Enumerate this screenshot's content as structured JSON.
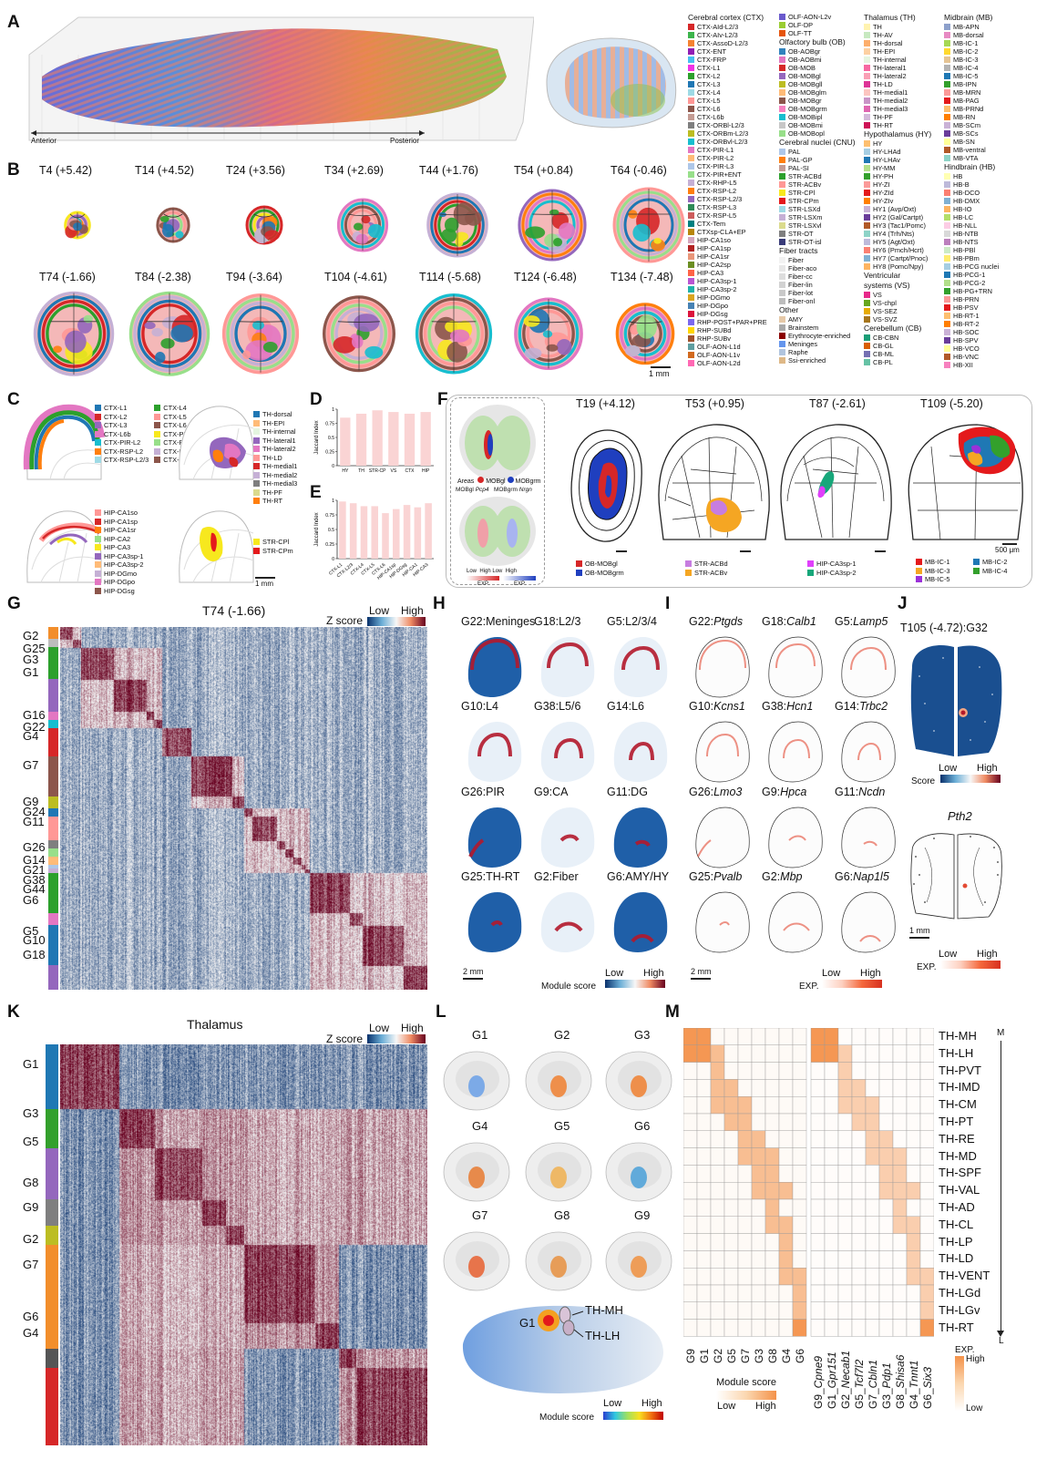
{
  "panels": {
    "a": "A",
    "b": "B",
    "c": "C",
    "d": "D",
    "e": "E",
    "f": "F",
    "g": "G",
    "h": "H",
    "i": "I",
    "j": "J",
    "k": "K",
    "l": "L",
    "m": "M"
  },
  "a": {
    "anterior": "Anterior",
    "posterior": "Posterior"
  },
  "legend": {
    "cols": [
      [
        {
          "h": "Cerebral cortex (CTX)"
        },
        {
          "l": "CTX-AId-L2/3",
          "c": "#d62728"
        },
        {
          "l": "CTX-AIv-L2/3",
          "c": "#3cb44b"
        },
        {
          "l": "CTX-AssoD-L2/3",
          "c": "#f58231"
        },
        {
          "l": "CTX-ENT",
          "c": "#911eb4"
        },
        {
          "l": "CTX-FRP",
          "c": "#46c0f0"
        },
        {
          "l": "CTX-L1",
          "c": "#f032e6"
        },
        {
          "l": "CTX-L2",
          "c": "#2ca02c"
        },
        {
          "l": "CTX-L3",
          "c": "#1f77b4"
        },
        {
          "l": "CTX-L4",
          "c": "#9edae5"
        },
        {
          "l": "CTX-L5",
          "c": "#ff9896"
        },
        {
          "l": "CTX-L6",
          "c": "#8c564b"
        },
        {
          "l": "CTX-L6b",
          "c": "#c49c94"
        },
        {
          "l": "CTX-ORBl-L2/3",
          "c": "#7f7f7f"
        },
        {
          "l": "CTX-ORBm-L2/3",
          "c": "#bcbd22"
        },
        {
          "l": "CTX-ORBvl-L2/3",
          "c": "#17becf"
        },
        {
          "l": "CTX-PIR-L1",
          "c": "#e377c2"
        },
        {
          "l": "CTX-PIR-L2",
          "c": "#ffbb78"
        },
        {
          "l": "CTX-PIR-L3",
          "c": "#aec7e8"
        },
        {
          "l": "CTX-PIR+ENT",
          "c": "#98df8a"
        },
        {
          "l": "CTX-RHP-L5",
          "c": "#c5b0d5"
        },
        {
          "l": "CTX-RSP-L2",
          "c": "#ff7f0e"
        },
        {
          "l": "CTX-RSP-L2/3",
          "c": "#9467bd"
        },
        {
          "l": "CTX-RSP-L3",
          "c": "#2e8b57"
        },
        {
          "l": "CTX-RSP-L5",
          "c": "#cd5c5c"
        },
        {
          "l": "CTX-Tem",
          "c": "#008080"
        },
        {
          "l": "CTXsp-CLA+EP",
          "c": "#b8860b"
        },
        {
          "l": "HIP-CA1so",
          "c": "#d5a6bd"
        },
        {
          "l": "HIP-CA1sp",
          "c": "#b22222"
        },
        {
          "l": "HIP-CA1sr",
          "c": "#e9967a"
        },
        {
          "l": "HIP-CA2sp",
          "c": "#6b8e23"
        },
        {
          "l": "HIP-CA3",
          "c": "#ff6347"
        },
        {
          "l": "HIP-CA3sp-1",
          "c": "#ba55d3"
        },
        {
          "l": "HIP-CA3sp-2",
          "c": "#20b2aa"
        },
        {
          "l": "HIP-DGmo",
          "c": "#daa520"
        },
        {
          "l": "HIP-DGpo",
          "c": "#4682b4"
        },
        {
          "l": "HIP-DGsg",
          "c": "#dc143c"
        },
        {
          "l": "RHP-POST+PAR+PRE",
          "c": "#7b68ee"
        },
        {
          "l": "RHP-SUBd",
          "c": "#ffd700"
        },
        {
          "l": "RHP-SUBv",
          "c": "#a0522d"
        },
        {
          "l": "OLF-AON-L1d",
          "c": "#5f9ea0"
        },
        {
          "l": "OLF-AON-L1v",
          "c": "#d2691e"
        },
        {
          "l": "OLF-AON-L2d",
          "c": "#ff69b4"
        }
      ],
      [
        {
          "l": "OLF-AON-L2v",
          "c": "#6a5acd"
        },
        {
          "l": "OLF-DP",
          "c": "#9acd32"
        },
        {
          "l": "OLF-TT",
          "c": "#e6550d"
        },
        {
          "h": "Olfactory bulb (OB)"
        },
        {
          "l": "OB-AOBgr",
          "c": "#3182bd"
        },
        {
          "l": "OB-AOBmi",
          "c": "#e377c2"
        },
        {
          "l": "OB-MOB",
          "c": "#d62728"
        },
        {
          "l": "OB-MOBgl",
          "c": "#9467bd"
        },
        {
          "l": "OB-MOBgll",
          "c": "#bcbd22"
        },
        {
          "l": "OB-MOBglm",
          "c": "#ffbb78"
        },
        {
          "l": "OB-MOBgr",
          "c": "#8c564b"
        },
        {
          "l": "OB-MOBgrm",
          "c": "#f781bf"
        },
        {
          "l": "OB-MOBipl",
          "c": "#17becf"
        },
        {
          "l": "OB-MOBmi",
          "c": "#c7c7c7"
        },
        {
          "l": "OB-MOBopl",
          "c": "#98df8a"
        },
        {
          "h": "Cerebral nuclei (CNU)"
        },
        {
          "l": "PAL",
          "c": "#aec7e8"
        },
        {
          "l": "PAL-GP",
          "c": "#ff7f0e"
        },
        {
          "l": "PAL-SI",
          "c": "#c49c94"
        },
        {
          "l": "STR-ACBd",
          "c": "#2ca02c"
        },
        {
          "l": "STR-ACBv",
          "c": "#ff9896"
        },
        {
          "l": "STR-CPl",
          "c": "#f7e81e"
        },
        {
          "l": "STR-CPm",
          "c": "#e41a1c"
        },
        {
          "l": "STR-LSXd",
          "c": "#9edae5"
        },
        {
          "l": "STR-LSXm",
          "c": "#c5b0d5"
        },
        {
          "l": "STR-LSXvl",
          "c": "#dbdb8d"
        },
        {
          "l": "STR-OT",
          "c": "#7f7f7f"
        },
        {
          "l": "STR-OT-isl",
          "c": "#393b79"
        },
        {
          "h": "Fiber tracts"
        },
        {
          "l": "Fiber",
          "c": "#f2f2f2"
        },
        {
          "l": "Fiber-aco",
          "c": "#e7e7e7"
        },
        {
          "l": "Fiber-cc",
          "c": "#dddddd"
        },
        {
          "l": "Fiber-lin",
          "c": "#d2d2d2"
        },
        {
          "l": "Fiber-lot",
          "c": "#c9c9c9"
        },
        {
          "l": "Fiber-onl",
          "c": "#bdbdbd"
        },
        {
          "h": "Other"
        },
        {
          "l": "AMY",
          "c": "#e6c9a8"
        },
        {
          "l": "Brainstem",
          "c": "#a9a9a9"
        },
        {
          "l": "Erythrocyte-enriched",
          "c": "#8b0000"
        },
        {
          "l": "Meninges",
          "c": "#6495ed"
        },
        {
          "l": "Raphe",
          "c": "#b0c4de"
        },
        {
          "l": "Ssi-enriched",
          "c": "#deb887"
        }
      ],
      [
        {
          "h": "Thalamus (TH)"
        },
        {
          "l": "TH",
          "c": "#fff3b0"
        },
        {
          "l": "TH-AV",
          "c": "#c7e9c0"
        },
        {
          "l": "TH-dorsal",
          "c": "#fdae6b"
        },
        {
          "l": "TH-EPI",
          "c": "#fdd0a2"
        },
        {
          "l": "TH-internal",
          "c": "#e5f5e0"
        },
        {
          "l": "TH-lateral1",
          "c": "#f768a1"
        },
        {
          "l": "TH-lateral2",
          "c": "#fa9fb5"
        },
        {
          "l": "TH-LD",
          "c": "#dd3497"
        },
        {
          "l": "TH-medial1",
          "c": "#fcc5c0"
        },
        {
          "l": "TH-medial2",
          "c": "#c994c7"
        },
        {
          "l": "TH-medial3",
          "c": "#df65b0"
        },
        {
          "l": "TH-PF",
          "c": "#d4b9da"
        },
        {
          "l": "TH-RT",
          "c": "#ce1256"
        },
        {
          "h": "Hypothalamus (HY)"
        },
        {
          "l": "HY",
          "c": "#fdbf6f"
        },
        {
          "l": "HY-LHAd",
          "c": "#a6cee3"
        },
        {
          "l": "HY-LHAv",
          "c": "#1f78b4"
        },
        {
          "l": "HY-MM",
          "c": "#b2df8a"
        },
        {
          "l": "HY-PH",
          "c": "#33a02c"
        },
        {
          "l": "HY-ZI",
          "c": "#fb9a99"
        },
        {
          "l": "HY-ZId",
          "c": "#e31a1c"
        },
        {
          "l": "HY-ZIv",
          "c": "#ff7f00"
        },
        {
          "l": "HY1 (Avp/Oxt)",
          "c": "#cab2d6"
        },
        {
          "l": "HY2 (Gal/Cartpt)",
          "c": "#6a3d9a"
        },
        {
          "l": "HY3 (Tac1/Pomc)",
          "c": "#b15928"
        },
        {
          "l": "HY4 (Trh/Nts)",
          "c": "#8dd3c7"
        },
        {
          "l": "HY5 (Agt/Oxt)",
          "c": "#bebada"
        },
        {
          "l": "HY6 (Pmch/Hcrt)",
          "c": "#fb8072"
        },
        {
          "l": "HY7 (Cartpt/Pnoc)",
          "c": "#80b1d3"
        },
        {
          "l": "HY8 (Pomc/Npy)",
          "c": "#fdb462"
        },
        {
          "h": "Ventricular"
        },
        {
          "h": "systems (VS)"
        },
        {
          "l": "VS",
          "c": "#e7298a"
        },
        {
          "l": "VS-chpl",
          "c": "#66a61e"
        },
        {
          "l": "VS-SEZ",
          "c": "#e6ab02"
        },
        {
          "l": "VS-SVZ",
          "c": "#a6761d"
        },
        {
          "h": "Cerebellum (CB)"
        },
        {
          "l": "CB-CBN",
          "c": "#1b9e77"
        },
        {
          "l": "CB-GL",
          "c": "#d95f02"
        },
        {
          "l": "CB-ML",
          "c": "#7570b3"
        },
        {
          "l": "CB-PL",
          "c": "#66c2a5"
        }
      ],
      [
        {
          "h": "Midbrain (MB)"
        },
        {
          "l": "MB-APN",
          "c": "#8da0cb"
        },
        {
          "l": "MB-dorsal",
          "c": "#e78ac3"
        },
        {
          "l": "MB-IC-1",
          "c": "#a6d854"
        },
        {
          "l": "MB-IC-2",
          "c": "#ffd92f"
        },
        {
          "l": "MB-IC-3",
          "c": "#e5c494"
        },
        {
          "l": "MB-IC-4",
          "c": "#b3b3b3"
        },
        {
          "l": "MB-IC-5",
          "c": "#1f78b4"
        },
        {
          "l": "MB-IPN",
          "c": "#33a02c"
        },
        {
          "l": "MB-MRN",
          "c": "#fb9a99"
        },
        {
          "l": "MB-PAG",
          "c": "#e31a1c"
        },
        {
          "l": "MB-PRNd",
          "c": "#fdbf6f"
        },
        {
          "l": "MB-RN",
          "c": "#ff7f00"
        },
        {
          "l": "MB-SCm",
          "c": "#cab2d6"
        },
        {
          "l": "MB-SCs",
          "c": "#6a3d9a"
        },
        {
          "l": "MB-SN",
          "c": "#ffff99"
        },
        {
          "l": "MB-ventral",
          "c": "#b15928"
        },
        {
          "l": "MB-VTA",
          "c": "#8dd3c7"
        },
        {
          "h": "Hindbrain (HB)"
        },
        {
          "l": "HB",
          "c": "#ffffb3"
        },
        {
          "l": "HB-B",
          "c": "#bebada"
        },
        {
          "l": "HB-DCO",
          "c": "#fb8072"
        },
        {
          "l": "HB-DMX",
          "c": "#80b1d3"
        },
        {
          "l": "HB-IO",
          "c": "#fdb462"
        },
        {
          "l": "HB-LC",
          "c": "#b3de69"
        },
        {
          "l": "HB-NLL",
          "c": "#fccde5"
        },
        {
          "l": "HB-NTB",
          "c": "#d9d9d9"
        },
        {
          "l": "HB-NTS",
          "c": "#bc80bd"
        },
        {
          "l": "HB-PBl",
          "c": "#ccebc5"
        },
        {
          "l": "HB-PBm",
          "c": "#ffed6f"
        },
        {
          "l": "HB-PCG nuclei",
          "c": "#a6cee3"
        },
        {
          "l": "HB-PCG-1",
          "c": "#1f78b4"
        },
        {
          "l": "HB-PCG-2",
          "c": "#b2df8a"
        },
        {
          "l": "HB-PG+TRN",
          "c": "#33a02c"
        },
        {
          "l": "HB-PRN",
          "c": "#fb9a99"
        },
        {
          "l": "HB-PSV",
          "c": "#e31a1c"
        },
        {
          "l": "HB-RT-1",
          "c": "#fdbf6f"
        },
        {
          "l": "HB-RT-2",
          "c": "#ff7f00"
        },
        {
          "l": "HB-SOC",
          "c": "#cab2d6"
        },
        {
          "l": "HB-SPV",
          "c": "#6a3d9a"
        },
        {
          "l": "HB-VCO",
          "c": "#ffff99"
        },
        {
          "l": "HB-VNC",
          "c": "#b15928"
        },
        {
          "l": "HB-XII",
          "c": "#f781bf"
        }
      ]
    ]
  },
  "b": {
    "row1": [
      "T4 (+5.42)",
      "T14 (+4.52)",
      "T24 (+3.56)",
      "T34 (+2.69)",
      "T44 (+1.76)",
      "T54 (+0.84)",
      "T64 (-0.46)"
    ],
    "row2": [
      "T74 (-1.66)",
      "T84 (-2.38)",
      "T94 (-3.64)",
      "T104 (-4.61)",
      "T114 (-5.68)",
      "T124 (-6.48)",
      "T134 (-7.48)"
    ],
    "scale": "1 mm"
  },
  "c": {
    "ctx": [
      [
        "CTX-L1",
        "#1f77b4"
      ],
      [
        "CTX-L4",
        "#2ca02c"
      ],
      [
        "CTX-L2",
        "#d62728"
      ],
      [
        "CTX-L5",
        "#ff9896"
      ],
      [
        "CTX-L3",
        "#9467bd"
      ],
      [
        "CTX-L6",
        "#8c564b"
      ],
      [
        "CTX-L6b",
        "#e377c2"
      ],
      [
        "CTX-PIR-L1",
        "#f7e81e"
      ],
      [
        "CTX-PIR-L2",
        "#17becf"
      ],
      [
        "CTX-PIR-L3",
        "#98df8a"
      ],
      [
        "CTX-RSP-L2",
        "#ff7f0e"
      ],
      [
        "CTX-RSP-L3",
        "#c5b0d5"
      ],
      [
        "CTX-RSP-L2/3",
        "#9edae5"
      ],
      [
        "CTX-RSP-L5",
        "#8c564b"
      ]
    ],
    "th": [
      [
        "TH-dorsal",
        "#1f77b4"
      ],
      [
        "TH-EPI",
        "#ffbb78"
      ],
      [
        "TH-internal",
        "#e5f5e0"
      ],
      [
        "TH-lateral1",
        "#9467bd"
      ],
      [
        "TH-lateral2",
        "#e377c2"
      ],
      [
        "TH-LD",
        "#ff9896"
      ],
      [
        "TH-medial1",
        "#d62728"
      ],
      [
        "TH-medial2",
        "#c5b0d5"
      ],
      [
        "TH-medial3",
        "#7f7f7f"
      ],
      [
        "TH-PF",
        "#dbdb8d"
      ],
      [
        "TH-RT",
        "#ff7f0e"
      ]
    ],
    "hip": [
      [
        "HIP-CA1so",
        "#ff9896"
      ],
      [
        "HIP-CA1sp",
        "#d62728"
      ],
      [
        "HIP-CA1sr",
        "#ff7f0e"
      ],
      [
        "HIP-CA2",
        "#98df8a"
      ],
      [
        "HIP-CA3",
        "#f7e81e"
      ],
      [
        "HIP-CA3sp-1",
        "#9467bd"
      ],
      [
        "HIP-CA3sp-2",
        "#ffbb78"
      ],
      [
        "HIP-DGmo",
        "#c5b0d5"
      ],
      [
        "HIP-DGpo",
        "#e377c2"
      ],
      [
        "HIP-DGsg",
        "#8c564b"
      ]
    ],
    "str": [
      [
        "STR-CPl",
        "#f7e81e"
      ],
      [
        "STR-CPm",
        "#e41a1c"
      ]
    ],
    "scale": "1 mm"
  },
  "d": {
    "ylabel": "Jaccard Index",
    "cats": [
      "HY",
      "TH",
      "STR-CP",
      "VS",
      "CTX",
      "HIP"
    ],
    "vals": [
      0.85,
      0.92,
      0.98,
      0.95,
      0.92,
      0.95
    ]
  },
  "e": {
    "ylabel": "Jaccard Index",
    "cats": [
      "CTX-L1",
      "CTX-L2/3",
      "CTX-L4",
      "CTX-L5",
      "CTX-L6",
      "HIP-CA1sp",
      "HIP-DGsg",
      "HIP-CA1",
      "HIP-CA3"
    ],
    "vals": [
      0.98,
      0.95,
      0.9,
      0.9,
      0.78,
      0.85,
      0.92,
      0.88,
      0.95
    ]
  },
  "f": {
    "areas": "Areas",
    "a1": "MOBgl",
    "a2": "MOBgrm",
    "g1": "MOBgl",
    "g1gene": "Pcp4",
    "g2": "MOBgrm",
    "g2gene": "Nrgn",
    "low": "Low",
    "high": "High",
    "exp": "EXP.",
    "titles": [
      "T19 (+4.12)",
      "T53 (+0.95)",
      "T87 (-2.61)",
      "T109 (-5.20)"
    ],
    "leg1": [
      [
        "OB-MOBgl",
        "#d62728"
      ],
      [
        "OB-MOBgrm",
        "#1f3fbf"
      ]
    ],
    "leg2": [
      [
        "STR-ACBd",
        "#c77de0"
      ],
      [
        "STR-ACBv",
        "#f5a623"
      ]
    ],
    "leg3": [
      [
        "HIP-CA3sp-1",
        "#e040fb"
      ],
      [
        "HIP-CA3sp-2",
        "#17a77a"
      ]
    ],
    "leg4": [
      [
        "MB-IC-1",
        "#e41a1c"
      ],
      [
        "MB-IC-2",
        "#1f78b4"
      ],
      [
        "MB-IC-3",
        "#f5a623"
      ],
      [
        "MB-IC-4",
        "#33a02c"
      ],
      [
        "MB-IC-5",
        "#9b30d9"
      ]
    ],
    "scale": "500 μm"
  },
  "g": {
    "title": "T74 (-1.66)",
    "zscore": "Z score",
    "low": "Low",
    "high": "High",
    "labels": [
      "G2",
      "G25",
      "G3",
      "G1",
      "G16",
      "G22",
      "G4",
      "G7",
      "G9",
      "G24",
      "G11",
      "G26",
      "G14",
      "G21",
      "G38",
      "G44",
      "G6",
      "G5",
      "G10",
      "G18"
    ]
  },
  "h": {
    "titles": [
      "G22:Meninges",
      "G18:L2/3",
      "G5:L2/3/4",
      "G10:L4",
      "G38:L5/6",
      "G14:L6",
      "G26:PIR",
      "G9:CA",
      "G11:DG",
      "G25:TH-RT",
      "G2:Fiber",
      "G6:AMY/HY"
    ],
    "scale": "2 mm",
    "low": "Low",
    "high": "High",
    "score": "Module score"
  },
  "i": {
    "prefix": [
      "G22:",
      "G18:",
      "G5:",
      "G10:",
      "G38:",
      "G14:",
      "G26:",
      "G9:",
      "G11:",
      "G25:",
      "G2:",
      "G6:"
    ],
    "genes": [
      "Ptgds",
      "Calb1",
      "Lamp5",
      "Kcns1",
      "Hcn1",
      "Trbc2",
      "Lmo3",
      "Hpca",
      "Ncdn",
      "Pvalb",
      "Mbp",
      "Nap1l5"
    ],
    "scale": "2 mm",
    "low": "Low",
    "high": "High",
    "exp": "EXP."
  },
  "j": {
    "title": "T105 (-4.72):G32",
    "low": "Low",
    "high": "High",
    "score": "Score",
    "gene": "Pth2",
    "scale": "1 mm",
    "exp": "EXP."
  },
  "k": {
    "title": "Thalamus",
    "zscore": "Z score",
    "low": "Low",
    "high": "High",
    "labels": [
      "G1",
      "G3",
      "G5",
      "G8",
      "G9",
      "G2",
      "G7",
      "G6",
      "G4"
    ]
  },
  "l": {
    "titles": [
      "G1",
      "G2",
      "G3",
      "G4",
      "G5",
      "G6",
      "G7",
      "G8",
      "G9"
    ],
    "g1": "G1",
    "thmh": "TH-MH",
    "thlh": "TH-LH",
    "low": "Low",
    "high": "High",
    "score": "Module score"
  },
  "m": {
    "rows": [
      "TH-MH",
      "TH-LH",
      "TH-PVT",
      "TH-IMD",
      "TH-CM",
      "TH-PT",
      "TH-RE",
      "TH-MD",
      "TH-SPF",
      "TH-VAL",
      "TH-AD",
      "TH-CL",
      "TH-LP",
      "TH-LD",
      "TH-VENT",
      "TH-LGd",
      "TH-LGv",
      "TH-RT"
    ],
    "cols1": [
      "G9",
      "G1",
      "G2",
      "G5",
      "G7",
      "G3",
      "G8",
      "G4",
      "G6"
    ],
    "cols2": [
      "G9_Cpne9",
      "G1_Gpr151",
      "G2_Necab1",
      "G5_Tcf7l2",
      "G7_Cbln1",
      "G3_Pdp1",
      "G8_Shisa6",
      "G4_Tnnt1",
      "G6_Six3"
    ],
    "m": "M",
    "l": "L",
    "score": "Module score",
    "low": "Low",
    "high": "High",
    "exp": "EXP."
  }
}
